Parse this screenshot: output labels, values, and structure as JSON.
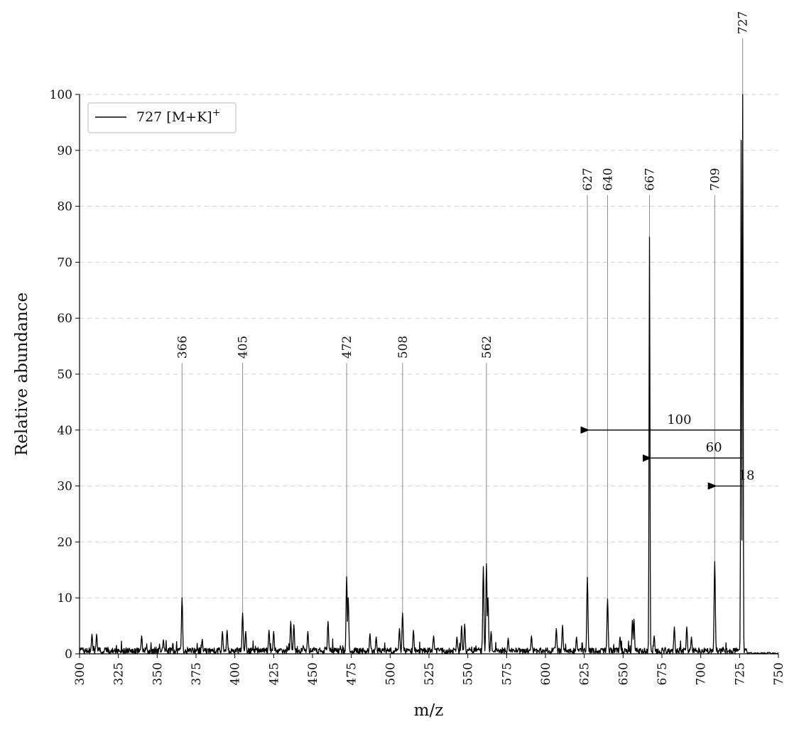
{
  "chart_data": {
    "type": "line",
    "xlabel": "m/z",
    "ylabel": "Relative abundance",
    "xlim": [
      300,
      750
    ],
    "ylim": [
      0,
      100
    ],
    "x_ticks": [
      300,
      325,
      350,
      375,
      400,
      425,
      450,
      475,
      500,
      525,
      550,
      575,
      600,
      625,
      650,
      675,
      700,
      725,
      750
    ],
    "y_ticks": [
      0,
      10,
      20,
      30,
      40,
      50,
      60,
      70,
      80,
      90,
      100
    ],
    "grid": "horizontal dashed",
    "legend": {
      "placement": "top-left",
      "entries": [
        "727 [M+K]+"
      ]
    },
    "series": [
      {
        "name": "727 [M+K]+",
        "color": "#000000",
        "peaks": [
          {
            "mz": 308,
            "intensity": 3.5
          },
          {
            "mz": 311,
            "intensity": 3.5
          },
          {
            "mz": 340,
            "intensity": 3.2
          },
          {
            "mz": 354,
            "intensity": 2.5
          },
          {
            "mz": 366,
            "intensity": 10
          },
          {
            "mz": 379,
            "intensity": 2.6
          },
          {
            "mz": 392,
            "intensity": 4
          },
          {
            "mz": 395,
            "intensity": 4.2
          },
          {
            "mz": 405,
            "intensity": 7.3
          },
          {
            "mz": 407,
            "intensity": 4
          },
          {
            "mz": 422,
            "intensity": 4.2
          },
          {
            "mz": 425,
            "intensity": 4
          },
          {
            "mz": 436,
            "intensity": 5.8
          },
          {
            "mz": 438,
            "intensity": 5.2
          },
          {
            "mz": 447,
            "intensity": 4
          },
          {
            "mz": 460,
            "intensity": 5.8
          },
          {
            "mz": 472,
            "intensity": 13.8
          },
          {
            "mz": 473,
            "intensity": 10
          },
          {
            "mz": 487,
            "intensity": 3.6
          },
          {
            "mz": 491,
            "intensity": 3
          },
          {
            "mz": 506,
            "intensity": 4.5
          },
          {
            "mz": 508,
            "intensity": 7.3
          },
          {
            "mz": 515,
            "intensity": 4.2
          },
          {
            "mz": 528,
            "intensity": 3.2
          },
          {
            "mz": 543,
            "intensity": 3
          },
          {
            "mz": 546,
            "intensity": 5
          },
          {
            "mz": 548,
            "intensity": 5.3
          },
          {
            "mz": 560,
            "intensity": 15.6
          },
          {
            "mz": 562,
            "intensity": 16.1
          },
          {
            "mz": 563,
            "intensity": 10
          },
          {
            "mz": 565,
            "intensity": 4
          },
          {
            "mz": 576,
            "intensity": 2.8
          },
          {
            "mz": 591,
            "intensity": 3.2
          },
          {
            "mz": 607,
            "intensity": 4.5
          },
          {
            "mz": 611,
            "intensity": 5.1
          },
          {
            "mz": 620,
            "intensity": 3
          },
          {
            "mz": 627,
            "intensity": 13.7
          },
          {
            "mz": 640,
            "intensity": 9.8
          },
          {
            "mz": 648,
            "intensity": 3
          },
          {
            "mz": 656,
            "intensity": 6
          },
          {
            "mz": 657,
            "intensity": 6.2
          },
          {
            "mz": 667,
            "intensity": 74.5
          },
          {
            "mz": 670,
            "intensity": 3.2
          },
          {
            "mz": 683,
            "intensity": 4.8
          },
          {
            "mz": 691,
            "intensity": 4.8
          },
          {
            "mz": 694,
            "intensity": 3
          },
          {
            "mz": 709,
            "intensity": 16.5
          },
          {
            "mz": 726,
            "intensity": 91.8
          },
          {
            "mz": 727,
            "intensity": 100
          }
        ]
      }
    ],
    "peak_labels": [
      {
        "mz": 366,
        "text": "366",
        "height": 52
      },
      {
        "mz": 405,
        "text": "405",
        "height": 52
      },
      {
        "mz": 472,
        "text": "472",
        "height": 52
      },
      {
        "mz": 508,
        "text": "508",
        "height": 52
      },
      {
        "mz": 562,
        "text": "562",
        "height": 52
      },
      {
        "mz": 627,
        "text": "627",
        "height": 82
      },
      {
        "mz": 640,
        "text": "640",
        "height": 82
      },
      {
        "mz": 667,
        "text": "667",
        "height": 82
      },
      {
        "mz": 709,
        "text": "709",
        "height": 82
      },
      {
        "mz": 727,
        "text": "727",
        "height": 110
      }
    ],
    "neutral_losses": [
      {
        "from": 727,
        "to": 627,
        "y": 40,
        "text": "100"
      },
      {
        "from": 727,
        "to": 667,
        "y": 35,
        "text": "60"
      },
      {
        "from": 727,
        "to": 709,
        "y": 30,
        "text": "18"
      }
    ]
  }
}
